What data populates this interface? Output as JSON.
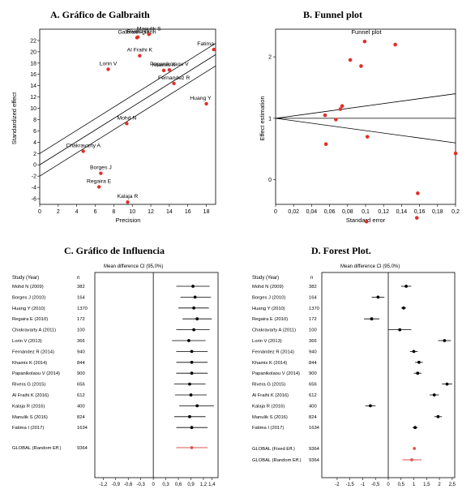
{
  "panels": {
    "a": "A. Gráfico de Galbraith",
    "b": "B. Funnel plot",
    "c": "C. Gráfico de Influencia",
    "d": "D. Forest Plot."
  },
  "chart_data": [
    {
      "type": "scatter",
      "title": "",
      "xlabel": "Precision",
      "ylabel": "Standardized effect",
      "xlim": [
        0,
        19
      ],
      "ylim": [
        -7,
        24
      ],
      "xticks": [
        0,
        2,
        4,
        6,
        8,
        10,
        12,
        14,
        16,
        18
      ],
      "yticks": [
        -6,
        -4,
        -2,
        0,
        2,
        4,
        6,
        8,
        10,
        12,
        14,
        16,
        18,
        20,
        22
      ],
      "points": [
        {
          "label": "Galbraith graph",
          "x": 10.5,
          "y": 22.5
        },
        {
          "label": "Rivera G",
          "x": 10.6,
          "y": 22.6
        },
        {
          "label": "Manulik S",
          "x": 11.8,
          "y": 23.1
        },
        {
          "label": "Al Fraihi K",
          "x": 10.8,
          "y": 19.3
        },
        {
          "label": "Fatima",
          "x": 18.8,
          "y": 20.4
        },
        {
          "label": "Lorin V",
          "x": 7.4,
          "y": 16.9
        },
        {
          "label": "Khamis K",
          "x": 13.4,
          "y": 16.7
        },
        {
          "label": "Papanikolaou V",
          "x": 14.0,
          "y": 16.8
        },
        {
          "label": "Fernandez R",
          "x": 14.5,
          "y": 14.4
        },
        {
          "label": "Huang Y",
          "x": 18.0,
          "y": 10.8
        },
        {
          "label": "Mohd N",
          "x": 9.4,
          "y": 7.3
        },
        {
          "label": "Chakravarty A",
          "x": 4.7,
          "y": 2.4
        },
        {
          "label": "Borges J",
          "x": 6.6,
          "y": -1.5
        },
        {
          "label": "Regaira E",
          "x": 6.4,
          "y": -3.9
        },
        {
          "label": "Kalaja R",
          "x": 9.5,
          "y": -6.6
        }
      ],
      "lines": [
        {
          "x": [
            0,
            19
          ],
          "y": [
            2.0,
            21.5
          ]
        },
        {
          "x": [
            0,
            19
          ],
          "y": [
            0.0,
            19.5
          ]
        },
        {
          "x": [
            0,
            19
          ],
          "y": [
            -2.0,
            17.5
          ]
        }
      ]
    },
    {
      "type": "scatter",
      "title": "Funnel plot",
      "xlabel": "Standard error",
      "ylabel": "Effect estimation",
      "xlim": [
        0,
        0.2
      ],
      "ylim": [
        -0.4,
        2.45
      ],
      "xticks": [
        "0",
        "0,02",
        "0,04",
        "0,06",
        "0,08",
        "0,1",
        "0,12",
        "0,14",
        "0,16",
        "0,18",
        "0,2"
      ],
      "yticks": [
        0,
        1,
        2
      ],
      "center": 1.0,
      "points": [
        {
          "x": 0.099,
          "y": 2.25
        },
        {
          "x": 0.133,
          "y": 2.2
        },
        {
          "x": 0.083,
          "y": 1.95
        },
        {
          "x": 0.095,
          "y": 1.85
        },
        {
          "x": 0.074,
          "y": 1.2
        },
        {
          "x": 0.072,
          "y": 1.15
        },
        {
          "x": 0.055,
          "y": 1.05
        },
        {
          "x": 0.067,
          "y": 0.98
        },
        {
          "x": 0.102,
          "y": 0.7
        },
        {
          "x": 0.056,
          "y": 0.58
        },
        {
          "x": 0.2,
          "y": 0.43
        },
        {
          "x": 0.158,
          "y": -0.22
        },
        {
          "x": 0.157,
          "y": -0.62
        },
        {
          "x": 0.101,
          "y": -0.68
        }
      ]
    },
    {
      "type": "forest",
      "title": "Mean difference CI (95,0%)",
      "header": "Study (Year)",
      "n_header": "n",
      "xlim": [
        -1.4,
        1.55
      ],
      "xticks": [
        "-1,2",
        "-0,9",
        "-0,6",
        "-0,3",
        "0",
        "0,3",
        "0,6",
        "0,9",
        "1,2",
        "1,4"
      ],
      "xtick_values": [
        -1.2,
        -0.9,
        -0.6,
        -0.3,
        0,
        0.3,
        0.6,
        0.9,
        1.2,
        1.4
      ],
      "studies": [
        {
          "label": "Mohd N (2009)",
          "n": "382",
          "est": 0.95,
          "lo": 0.55,
          "hi": 1.35
        },
        {
          "label": "Borges J (2010)",
          "n": "164",
          "est": 1.0,
          "lo": 0.65,
          "hi": 1.38
        },
        {
          "label": "Huang Y (2010)",
          "n": "1370",
          "est": 0.97,
          "lo": 0.6,
          "hi": 1.33
        },
        {
          "label": "Regaira E (2010)",
          "n": "172",
          "est": 1.05,
          "lo": 0.7,
          "hi": 1.4
        },
        {
          "label": "Chakravarty A (2011)",
          "n": "100",
          "est": 0.97,
          "lo": 0.55,
          "hi": 1.35
        },
        {
          "label": "Lorin V (2013)",
          "n": "366",
          "est": 0.85,
          "lo": 0.45,
          "hi": 1.25
        },
        {
          "label": "Fernández R (2014)",
          "n": "940",
          "est": 0.92,
          "lo": 0.55,
          "hi": 1.3
        },
        {
          "label": "Khamis K (2014)",
          "n": "844",
          "est": 0.92,
          "lo": 0.55,
          "hi": 1.3
        },
        {
          "label": "Papanikolaou V (2014)",
          "n": "900",
          "est": 0.92,
          "lo": 0.55,
          "hi": 1.3
        },
        {
          "label": "Rivera G (2015)",
          "n": "656",
          "est": 0.87,
          "lo": 0.5,
          "hi": 1.25
        },
        {
          "label": "Al Fraihi K (2016)",
          "n": "612",
          "est": 0.9,
          "lo": 0.52,
          "hi": 1.28
        },
        {
          "label": "Kalaja R (2016)",
          "n": "400",
          "est": 1.05,
          "lo": 0.62,
          "hi": 1.45
        },
        {
          "label": "Manulik S (2016)",
          "n": "824",
          "est": 0.87,
          "lo": 0.5,
          "hi": 1.25
        },
        {
          "label": "Fatima I (2017)",
          "n": "1634",
          "est": 0.92,
          "lo": 0.55,
          "hi": 1.3
        }
      ],
      "summaries": [
        {
          "label": "GLOBAL (Random Eff.)",
          "n": "9364",
          "est": 0.92,
          "lo": 0.55,
          "hi": 1.3,
          "color": "#d9534f"
        }
      ]
    },
    {
      "type": "forest",
      "title": "Mean difference CI (95,0%)",
      "header": "Study (Year)",
      "n_header": "n",
      "xlim": [
        -2.6,
        2.6
      ],
      "xticks": [
        "-2",
        "-1,5",
        "-1",
        "-0,5",
        "0",
        "0,5",
        "1",
        "1,5",
        "2",
        "2,5"
      ],
      "xtick_values": [
        -2,
        -1.5,
        -1,
        -0.5,
        0,
        0.5,
        1,
        1.5,
        2,
        2.5
      ],
      "studies": [
        {
          "label": "Mohd N (2009)",
          "n": "382",
          "est": 0.7,
          "lo": 0.5,
          "hi": 0.9
        },
        {
          "label": "Borges J (2010)",
          "n": "164",
          "est": -0.4,
          "lo": -0.65,
          "hi": -0.15
        },
        {
          "label": "Huang Y (2010)",
          "n": "1370",
          "est": 0.6,
          "lo": 0.5,
          "hi": 0.7
        },
        {
          "label": "Regaira E (2010)",
          "n": "172",
          "est": -0.65,
          "lo": -0.95,
          "hi": -0.35
        },
        {
          "label": "Chakravarty A (2011)",
          "n": "100",
          "est": 0.45,
          "lo": 0.0,
          "hi": 0.9
        },
        {
          "label": "Lorin V (2013)",
          "n": "366",
          "est": 2.2,
          "lo": 1.95,
          "hi": 2.45
        },
        {
          "label": "Fernández R (2014)",
          "n": "940",
          "est": 1.0,
          "lo": 0.85,
          "hi": 1.15
        },
        {
          "label": "Khamis K (2014)",
          "n": "844",
          "est": 1.2,
          "lo": 1.05,
          "hi": 1.35
        },
        {
          "label": "Papanikolaou V (2014)",
          "n": "900",
          "est": 1.15,
          "lo": 1.0,
          "hi": 1.3
        },
        {
          "label": "Rivera G (2015)",
          "n": "656",
          "est": 2.3,
          "lo": 2.1,
          "hi": 2.5
        },
        {
          "label": "Al Fraihi K (2016)",
          "n": "612",
          "est": 1.8,
          "lo": 1.62,
          "hi": 1.98
        },
        {
          "label": "Kalaja R (2016)",
          "n": "400",
          "est": -0.7,
          "lo": -0.9,
          "hi": -0.5
        },
        {
          "label": "Manulik S (2016)",
          "n": "824",
          "est": 1.95,
          "lo": 1.8,
          "hi": 2.1
        },
        {
          "label": "Fatima I (2017)",
          "n": "1634",
          "est": 1.05,
          "lo": 0.95,
          "hi": 1.15
        }
      ],
      "summaries": [
        {
          "label": "GLOBAL (Fixed Eff.)",
          "n": "9364",
          "est": 1.02,
          "lo": 0.97,
          "hi": 1.07,
          "color": "#d9534f"
        },
        {
          "label": "GLOBAL (Random Eff.)",
          "n": "9364",
          "est": 0.92,
          "lo": 0.55,
          "hi": 1.3,
          "color": "#d9534f"
        }
      ]
    }
  ]
}
